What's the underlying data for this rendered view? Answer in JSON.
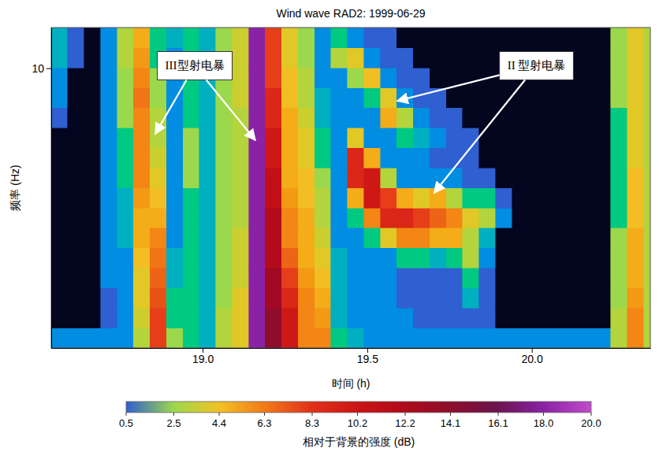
{
  "chart_data": {
    "type": "heatmap",
    "title": "Wind wave RAD2: 1999-06-29",
    "x_label": "时间 (h)",
    "y_label": "频率 (Hz)",
    "xlim": [
      18.54,
      20.36
    ],
    "xticks": [
      {
        "value": 19,
        "label": "19.0"
      },
      19.5,
      {
        "value": 20,
        "label": "20.0"
      }
    ],
    "ylim": [
      1.075,
      13.825
    ],
    "yticks": [
      10
    ],
    "log": "y",
    "x_bins": [
      18.54,
      18.59,
      18.64,
      18.69,
      18.74,
      18.79,
      18.84,
      18.89,
      18.94,
      18.99,
      19.04,
      19.09,
      19.14,
      19.19,
      19.24,
      19.29,
      19.34,
      19.39,
      19.44,
      19.49,
      19.54,
      19.59,
      19.64,
      19.69,
      19.74,
      19.79,
      19.84,
      19.89,
      19.94,
      19.99,
      20.04,
      20.09,
      20.14,
      20.19,
      20.24,
      20.29,
      20.34,
      20.39
    ],
    "y_bins": [
      1.075,
      1.261,
      1.479,
      1.735,
      2.035,
      2.387,
      2.8,
      3.284,
      3.852,
      4.518,
      5.3,
      6.216,
      7.292,
      8.553,
      10.03,
      11.77,
      13.825
    ],
    "cells": [
      [
        1,
        1,
        1,
        1,
        1,
        3,
        8,
        2.5,
        2,
        1.5,
        3,
        4,
        18,
        14,
        10,
        6,
        6,
        2,
        1.5,
        1,
        1,
        1,
        1,
        1,
        1,
        1,
        1,
        1,
        1,
        1,
        1,
        1,
        1,
        1,
        3,
        6,
        3
      ],
      [
        0,
        0,
        0,
        0.5,
        1,
        3.5,
        8,
        2,
        2,
        1.5,
        3,
        4,
        18,
        14,
        10,
        6,
        5.5,
        1.5,
        1,
        1,
        1,
        1,
        0.5,
        0.5,
        0.5,
        0.5,
        0.5,
        0,
        0,
        0,
        0,
        0,
        0,
        0,
        3,
        6,
        3
      ],
      [
        0,
        0,
        0,
        0.5,
        1,
        4,
        7.5,
        2,
        2,
        1.5,
        2.5,
        4,
        18,
        13,
        9,
        6,
        5,
        1.5,
        1,
        1,
        1,
        0.5,
        0.5,
        0.5,
        0.5,
        1.5,
        0.5,
        0,
        0,
        0,
        0,
        0,
        0,
        0,
        2.5,
        5.5,
        3
      ],
      [
        0,
        0,
        0,
        1,
        1,
        4,
        7,
        1.5,
        2,
        1.5,
        2.5,
        3.5,
        18,
        13,
        8,
        5.5,
        4.5,
        1.5,
        1,
        1,
        1,
        0.5,
        0.5,
        0.5,
        0.5,
        2,
        0.5,
        0,
        0,
        0,
        0,
        0,
        0,
        0,
        2.5,
        5,
        3
      ],
      [
        0,
        0,
        0,
        1,
        1,
        4.5,
        6.5,
        1.5,
        2,
        1.5,
        2.5,
        3.5,
        18,
        12,
        7,
        5,
        4,
        1.5,
        1,
        1,
        1,
        2,
        2,
        1.5,
        2,
        3,
        1,
        0,
        0,
        0,
        0,
        0,
        0,
        0,
        2.5,
        5,
        3
      ],
      [
        0,
        0,
        0,
        1,
        1.5,
        5,
        6,
        1,
        2,
        1.5,
        2.5,
        3.5,
        18,
        12,
        6,
        5,
        3.5,
        1,
        1,
        2,
        4,
        6,
        6,
        5,
        5,
        3,
        1.5,
        0,
        0,
        0,
        0,
        0,
        0,
        0,
        2.5,
        5,
        3
      ],
      [
        0,
        0,
        0,
        1,
        1.5,
        5,
        5,
        1,
        2,
        1.5,
        2.5,
        3,
        18,
        12,
        6,
        5,
        3,
        1,
        2,
        6,
        9,
        9,
        8,
        7,
        6,
        4,
        3,
        1,
        0,
        0,
        0,
        0,
        0,
        0,
        2,
        4.5,
        3
      ],
      [
        0,
        0,
        0,
        1,
        1.5,
        5.5,
        4.5,
        1,
        2,
        1.5,
        2.5,
        3,
        18,
        11,
        5.5,
        4.5,
        3,
        1,
        5,
        10,
        8,
        5,
        4,
        5,
        3,
        2,
        2,
        0.5,
        0,
        0,
        0,
        0,
        0,
        0,
        2,
        4.5,
        3
      ],
      [
        0,
        0,
        0,
        1,
        2,
        6,
        4,
        1,
        2.5,
        1.5,
        2.5,
        3,
        18,
        11,
        5,
        4.5,
        2.5,
        1,
        9,
        10,
        3,
        1,
        1,
        1,
        1,
        0.5,
        0.5,
        0,
        0,
        0,
        0,
        0,
        0,
        0,
        2,
        4.5,
        3
      ],
      [
        0,
        0,
        0,
        1,
        2,
        6,
        3.5,
        1,
        2.5,
        1.5,
        2.5,
        3,
        18,
        10,
        5,
        4,
        2,
        1,
        9,
        5,
        1,
        1,
        1,
        0.5,
        0.5,
        0.5,
        0,
        0,
        0,
        0,
        0,
        0,
        0,
        0,
        2,
        4,
        3
      ],
      [
        0,
        0,
        0,
        1,
        2,
        6,
        3,
        1,
        2.5,
        1.5,
        2.5,
        3,
        18,
        10,
        5,
        4,
        2,
        1,
        4,
        1,
        1,
        2,
        1.5,
        1,
        0.5,
        0.5,
        0,
        0,
        0,
        0,
        0,
        0,
        0,
        0,
        2,
        4,
        3
      ],
      [
        0.5,
        0,
        0,
        1,
        2.5,
        6,
        3,
        1,
        2,
        1.5,
        2.5,
        3,
        18,
        9,
        5,
        3.5,
        1.5,
        1,
        1,
        1,
        5,
        3,
        1,
        0.5,
        0.5,
        0,
        0,
        0,
        0,
        0,
        0,
        0,
        0,
        0,
        2,
        4,
        3
      ],
      [
        1,
        0,
        0,
        1,
        2.5,
        6.5,
        2.5,
        1,
        2,
        1.5,
        2.5,
        3.5,
        18,
        9,
        4.5,
        3,
        1.5,
        1,
        1,
        2,
        4,
        1,
        0.5,
        0.5,
        0,
        0,
        0,
        0,
        0,
        0,
        0,
        0,
        0,
        0,
        2.5,
        4,
        3
      ],
      [
        1,
        0,
        0,
        1,
        2.5,
        6,
        2.5,
        1,
        2,
        1.5,
        2.5,
        3.5,
        18,
        8,
        4.5,
        3,
        1,
        1,
        2.5,
        4.5,
        1,
        0.5,
        0.5,
        0,
        0,
        0,
        0,
        0,
        0,
        0,
        0,
        0,
        0,
        0,
        2.5,
        4,
        3
      ],
      [
        1.5,
        0.5,
        0,
        1,
        3,
        5.5,
        2,
        1,
        2,
        1.5,
        2.5,
        3.5,
        18,
        8,
        4,
        2.5,
        1,
        3,
        4,
        1,
        0.5,
        0.5,
        0,
        0,
        0,
        0,
        0,
        0,
        0,
        0,
        0,
        0,
        0,
        0,
        2.5,
        4,
        3
      ],
      [
        1.5,
        0.5,
        0,
        1,
        3,
        5,
        2,
        1.5,
        2,
        1.5,
        2.5,
        3.5,
        18,
        8,
        4,
        2.5,
        1,
        2,
        1,
        0.5,
        0.5,
        0,
        0,
        0,
        0,
        0,
        0,
        0,
        0,
        0,
        0,
        0,
        0,
        0,
        2.5,
        4,
        3
      ]
    ],
    "colorbar": {
      "label": "相对于背景的强度 (dB)",
      "range": [
        0.5,
        20
      ],
      "ticks": [
        0.5,
        2.5,
        4.4,
        6.3,
        8.3,
        10.2,
        12.2,
        14.1,
        16.1,
        {
          "value": 18,
          "label": "18.0"
        },
        {
          "value": 20,
          "label": "20.0"
        }
      ]
    },
    "annotations": [
      {
        "text": "III型射电暴",
        "x": 18.976,
        "y": 10.2,
        "arrows": [
          {
            "x": 18.856,
            "y": 5.92
          },
          {
            "x": 19.16,
            "y": 5.63
          }
        ]
      },
      {
        "text": "II 型射电暴",
        "x": 20.014,
        "y": 10.2,
        "arrows": [
          {
            "x": 19.591,
            "y": 7.7
          },
          {
            "x": 19.703,
            "y": 3.7
          }
        ]
      }
    ]
  }
}
